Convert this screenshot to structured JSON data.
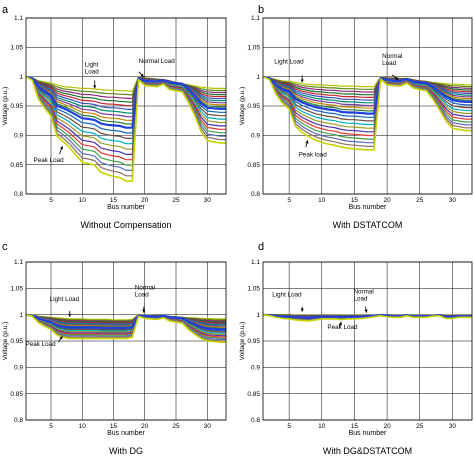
{
  "figure": {
    "panel_count": 4
  },
  "chart_data": [
    {
      "type": "line",
      "panel_letter": "a",
      "title": "Without Compensation",
      "xlabel": "Bus number",
      "ylabel": "Voltage (p.u.)",
      "x_ticks": [
        5,
        10,
        15,
        20,
        25,
        30
      ],
      "y_ticks": [
        0.8,
        0.85,
        0.9,
        0.95,
        1,
        1.05,
        1.1
      ],
      "y_tick_labels": [
        "0.8",
        "0.85",
        "0.9",
        "0.95",
        "1",
        "1.05",
        "1.1"
      ],
      "xlim": [
        1,
        33
      ],
      "ylim": [
        0.8,
        1.1
      ],
      "grid": true,
      "annotations": [
        {
          "text": "Light\nLoad",
          "x": 12,
          "y": 0.975
        },
        {
          "text": "Normal Load",
          "x": 20,
          "y": 0.998
        },
        {
          "text": "Peak Load",
          "x": 7,
          "y": 0.885
        }
      ],
      "envelope": {
        "x": [
          1,
          2,
          3,
          4,
          5,
          6,
          7,
          8,
          9,
          10,
          11,
          12,
          13,
          14,
          15,
          16,
          17,
          18,
          19,
          20,
          21,
          22,
          23,
          24,
          25,
          26,
          27,
          28,
          29,
          30,
          31,
          32,
          33
        ],
        "light": [
          1.0,
          0.998,
          0.993,
          0.991,
          0.989,
          0.986,
          0.983,
          0.982,
          0.981,
          0.98,
          0.98,
          0.979,
          0.978,
          0.977,
          0.977,
          0.976,
          0.976,
          0.975,
          0.999,
          0.998,
          0.997,
          0.996,
          0.995,
          0.993,
          0.99,
          0.988,
          0.986,
          0.984,
          0.982,
          0.981,
          0.98,
          0.98,
          0.98
        ],
        "normal": [
          1.0,
          0.997,
          0.983,
          0.975,
          0.968,
          0.95,
          0.946,
          0.941,
          0.935,
          0.929,
          0.928,
          0.926,
          0.92,
          0.918,
          0.917,
          0.916,
          0.913,
          0.913,
          0.997,
          0.993,
          0.992,
          0.992,
          0.994,
          0.99,
          0.989,
          0.988,
          0.979,
          0.968,
          0.955,
          0.947,
          0.946,
          0.945,
          0.945
        ],
        "peak": [
          1.0,
          0.994,
          0.962,
          0.946,
          0.933,
          0.898,
          0.889,
          0.879,
          0.866,
          0.854,
          0.852,
          0.849,
          0.837,
          0.833,
          0.83,
          0.828,
          0.822,
          0.822,
          0.995,
          0.985,
          0.984,
          0.983,
          0.987,
          0.978,
          0.976,
          0.974,
          0.956,
          0.934,
          0.907,
          0.891,
          0.889,
          0.887,
          0.887
        ]
      }
    },
    {
      "type": "line",
      "panel_letter": "b",
      "title": "With DSTATCOM",
      "xlabel": "Bus number",
      "ylabel": "Voltage (p.u.)",
      "x_ticks": [
        5,
        10,
        15,
        20,
        25,
        30
      ],
      "y_ticks": [
        0.8,
        0.85,
        0.9,
        0.95,
        1,
        1.05,
        1.1
      ],
      "y_tick_labels": [
        "0.8",
        "0.85",
        "0.9",
        "0.95",
        "1",
        "1.05",
        "1.1"
      ],
      "xlim": [
        1,
        33
      ],
      "ylim": [
        0.8,
        1.1
      ],
      "grid": true,
      "annotations": [
        {
          "text": "Light Load",
          "x": 7,
          "y": 0.985
        },
        {
          "text": "Normal\nLoad",
          "x": 22,
          "y": 0.993
        },
        {
          "text": "Peak load",
          "x": 8,
          "y": 0.895
        }
      ],
      "envelope": {
        "x": [
          1,
          2,
          3,
          4,
          5,
          6,
          7,
          8,
          9,
          10,
          11,
          12,
          13,
          14,
          15,
          16,
          17,
          18,
          19,
          20,
          21,
          22,
          23,
          24,
          25,
          26,
          27,
          28,
          29,
          30,
          31,
          32,
          33
        ],
        "light": [
          1.0,
          0.998,
          0.995,
          0.993,
          0.992,
          0.99,
          0.988,
          0.987,
          0.986,
          0.986,
          0.985,
          0.985,
          0.984,
          0.984,
          0.984,
          0.983,
          0.983,
          0.983,
          0.999,
          0.998,
          0.998,
          0.997,
          0.997,
          0.995,
          0.993,
          0.992,
          0.99,
          0.989,
          0.988,
          0.987,
          0.987,
          0.986,
          0.986
        ],
        "normal": [
          1.0,
          0.997,
          0.986,
          0.979,
          0.975,
          0.962,
          0.956,
          0.952,
          0.948,
          0.946,
          0.944,
          0.943,
          0.94,
          0.939,
          0.939,
          0.938,
          0.937,
          0.937,
          0.997,
          0.995,
          0.993,
          0.993,
          0.996,
          0.991,
          0.99,
          0.989,
          0.983,
          0.975,
          0.966,
          0.96,
          0.958,
          0.957,
          0.957
        ],
        "peak": [
          1.0,
          0.995,
          0.97,
          0.955,
          0.945,
          0.915,
          0.905,
          0.898,
          0.892,
          0.888,
          0.885,
          0.883,
          0.88,
          0.878,
          0.877,
          0.876,
          0.875,
          0.875,
          0.996,
          0.986,
          0.985,
          0.984,
          0.989,
          0.981,
          0.978,
          0.976,
          0.962,
          0.944,
          0.925,
          0.912,
          0.91,
          0.908,
          0.908
        ]
      }
    },
    {
      "type": "line",
      "panel_letter": "c",
      "title": "With DG",
      "xlabel": "Bus number",
      "ylabel": "Voltage (p.u.)",
      "x_ticks": [
        5,
        10,
        15,
        20,
        25,
        30
      ],
      "y_ticks": [
        0.8,
        0.85,
        0.9,
        0.95,
        1,
        1.05,
        1.1
      ],
      "y_tick_labels": [
        "0.8",
        "0.85",
        "0.9",
        "0.95",
        "1",
        "1.05",
        "1.1"
      ],
      "xlim": [
        1,
        33
      ],
      "ylim": [
        0.8,
        1.1
      ],
      "grid": true,
      "annotations": [
        {
          "text": "Light Load",
          "x": 8,
          "y": 0.99
        },
        {
          "text": "Normal\nLoad",
          "x": 20,
          "y": 1.0
        },
        {
          "text": "Peak Load",
          "x": 7,
          "y": 0.963
        }
      ],
      "envelope": {
        "x": [
          1,
          2,
          3,
          4,
          5,
          6,
          7,
          8,
          9,
          10,
          11,
          12,
          13,
          14,
          15,
          16,
          17,
          18,
          19,
          20,
          21,
          22,
          23,
          24,
          25,
          26,
          27,
          28,
          29,
          30,
          31,
          32,
          33
        ],
        "light": [
          1.0,
          0.999,
          0.997,
          0.996,
          0.995,
          0.994,
          0.993,
          0.992,
          0.992,
          0.992,
          0.991,
          0.991,
          0.991,
          0.991,
          0.99,
          0.99,
          0.99,
          0.991,
          1.0,
          0.999,
          0.999,
          0.998,
          0.998,
          0.997,
          0.996,
          0.995,
          0.994,
          0.994,
          0.993,
          0.993,
          0.992,
          0.992,
          0.992
        ],
        "normal": [
          1.0,
          0.998,
          0.993,
          0.989,
          0.986,
          0.98,
          0.977,
          0.976,
          0.976,
          0.976,
          0.976,
          0.976,
          0.975,
          0.975,
          0.975,
          0.975,
          0.975,
          0.976,
          0.998,
          0.997,
          0.997,
          0.996,
          0.998,
          0.995,
          0.994,
          0.993,
          0.987,
          0.982,
          0.977,
          0.974,
          0.973,
          0.972,
          0.972
        ],
        "peak": [
          1.0,
          0.997,
          0.985,
          0.978,
          0.972,
          0.961,
          0.957,
          0.955,
          0.955,
          0.955,
          0.955,
          0.955,
          0.955,
          0.955,
          0.955,
          0.955,
          0.955,
          0.957,
          0.997,
          0.993,
          0.992,
          0.991,
          0.994,
          0.988,
          0.986,
          0.984,
          0.972,
          0.963,
          0.955,
          0.95,
          0.949,
          0.948,
          0.948
        ]
      }
    },
    {
      "type": "line",
      "panel_letter": "d",
      "title": "With DG&DSTATCOM",
      "xlabel": "Bus number",
      "ylabel": "Voltage (p.u.)",
      "x_ticks": [
        5,
        10,
        15,
        20,
        25,
        30
      ],
      "y_ticks": [
        0.8,
        0.85,
        0.9,
        0.95,
        1,
        1.05,
        1.1
      ],
      "y_tick_labels": [
        "0.8",
        "0.85",
        "0.9",
        "0.95",
        "1",
        "1.05",
        "1.1"
      ],
      "xlim": [
        1,
        33
      ],
      "ylim": [
        0.8,
        1.1
      ],
      "grid": true,
      "annotations": [
        {
          "text": "Light Load",
          "x": 7,
          "y": 1.0
        },
        {
          "text": "Normal\nLoad",
          "x": 17,
          "y": 1.0
        },
        {
          "text": "Peak Load",
          "x": 13,
          "y": 0.99
        }
      ],
      "envelope": {
        "x": [
          1,
          2,
          3,
          4,
          5,
          6,
          7,
          8,
          9,
          10,
          11,
          12,
          13,
          14,
          15,
          16,
          17,
          18,
          19,
          20,
          21,
          22,
          23,
          24,
          25,
          26,
          27,
          28,
          29,
          30,
          31,
          32,
          33
        ],
        "light": [
          1.0,
          1.0,
          1.0,
          1.0,
          1.0,
          0.999,
          0.999,
          0.999,
          0.999,
          0.999,
          0.999,
          0.999,
          0.999,
          0.999,
          0.999,
          0.999,
          0.999,
          0.999,
          1.0,
          1.0,
          0.999,
          0.999,
          1.0,
          0.999,
          0.999,
          0.999,
          0.999,
          1.0,
          0.999,
          0.999,
          0.999,
          0.999,
          0.999
        ],
        "normal": [
          1.0,
          0.999,
          0.997,
          0.996,
          0.996,
          0.995,
          0.995,
          0.994,
          0.995,
          0.996,
          0.996,
          0.996,
          0.995,
          0.996,
          0.996,
          0.996,
          0.997,
          0.998,
          0.999,
          0.998,
          0.997,
          0.997,
          0.999,
          0.997,
          0.997,
          0.997,
          0.998,
          0.999,
          0.996,
          0.996,
          0.997,
          0.997,
          0.997
        ],
        "peak": [
          1.0,
          0.998,
          0.995,
          0.993,
          0.992,
          0.99,
          0.989,
          0.988,
          0.99,
          0.992,
          0.992,
          0.992,
          0.991,
          0.992,
          0.992,
          0.993,
          0.994,
          0.996,
          0.998,
          0.996,
          0.995,
          0.995,
          0.998,
          0.995,
          0.995,
          0.995,
          0.997,
          0.998,
          0.993,
          0.993,
          0.995,
          0.995,
          0.995
        ]
      }
    }
  ]
}
